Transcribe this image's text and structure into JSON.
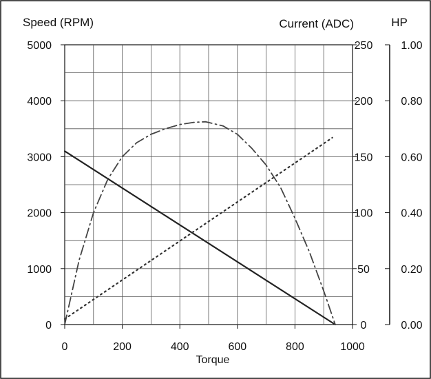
{
  "chart_data": {
    "type": "line",
    "xlabel": "Torque",
    "x_ticks": [
      "0",
      "200",
      "400",
      "600",
      "800",
      "1000"
    ],
    "xlim": [
      0,
      1000
    ],
    "axes": {
      "left": {
        "label": "Speed (RPM)",
        "range": [
          0,
          5000
        ],
        "ticks": [
          "0",
          "1000",
          "2000",
          "3000",
          "4000",
          "5000"
        ]
      },
      "right1": {
        "label": "Current (ADC)",
        "range": [
          0,
          250
        ],
        "ticks": [
          "0",
          "50",
          "100",
          "150",
          "200",
          "250"
        ]
      },
      "right2": {
        "label": "HP",
        "range": [
          0,
          1.0
        ],
        "ticks": [
          "0.00",
          "0.20",
          "0.40",
          "0.60",
          "0.80",
          "1.00"
        ]
      }
    },
    "grid": true,
    "series": [
      {
        "style": "solid",
        "axis": "left",
        "points": [
          [
            0,
            3100
          ],
          [
            940,
            0
          ]
        ]
      },
      {
        "style": "dotted",
        "axis": "right1",
        "points": [
          [
            0,
            5
          ],
          [
            930,
            167
          ]
        ]
      },
      {
        "style": "dash-dot",
        "axis": "right2",
        "points": [
          [
            0,
            0.0
          ],
          [
            50,
            0.23
          ],
          [
            100,
            0.4
          ],
          [
            150,
            0.52
          ],
          [
            200,
            0.6
          ],
          [
            250,
            0.65
          ],
          [
            300,
            0.68
          ],
          [
            350,
            0.7
          ],
          [
            400,
            0.715
          ],
          [
            450,
            0.723
          ],
          [
            490,
            0.725
          ],
          [
            550,
            0.71
          ],
          [
            600,
            0.68
          ],
          [
            650,
            0.63
          ],
          [
            700,
            0.57
          ],
          [
            750,
            0.49
          ],
          [
            800,
            0.38
          ],
          [
            850,
            0.26
          ],
          [
            900,
            0.12
          ],
          [
            940,
            0.0
          ]
        ]
      }
    ]
  }
}
